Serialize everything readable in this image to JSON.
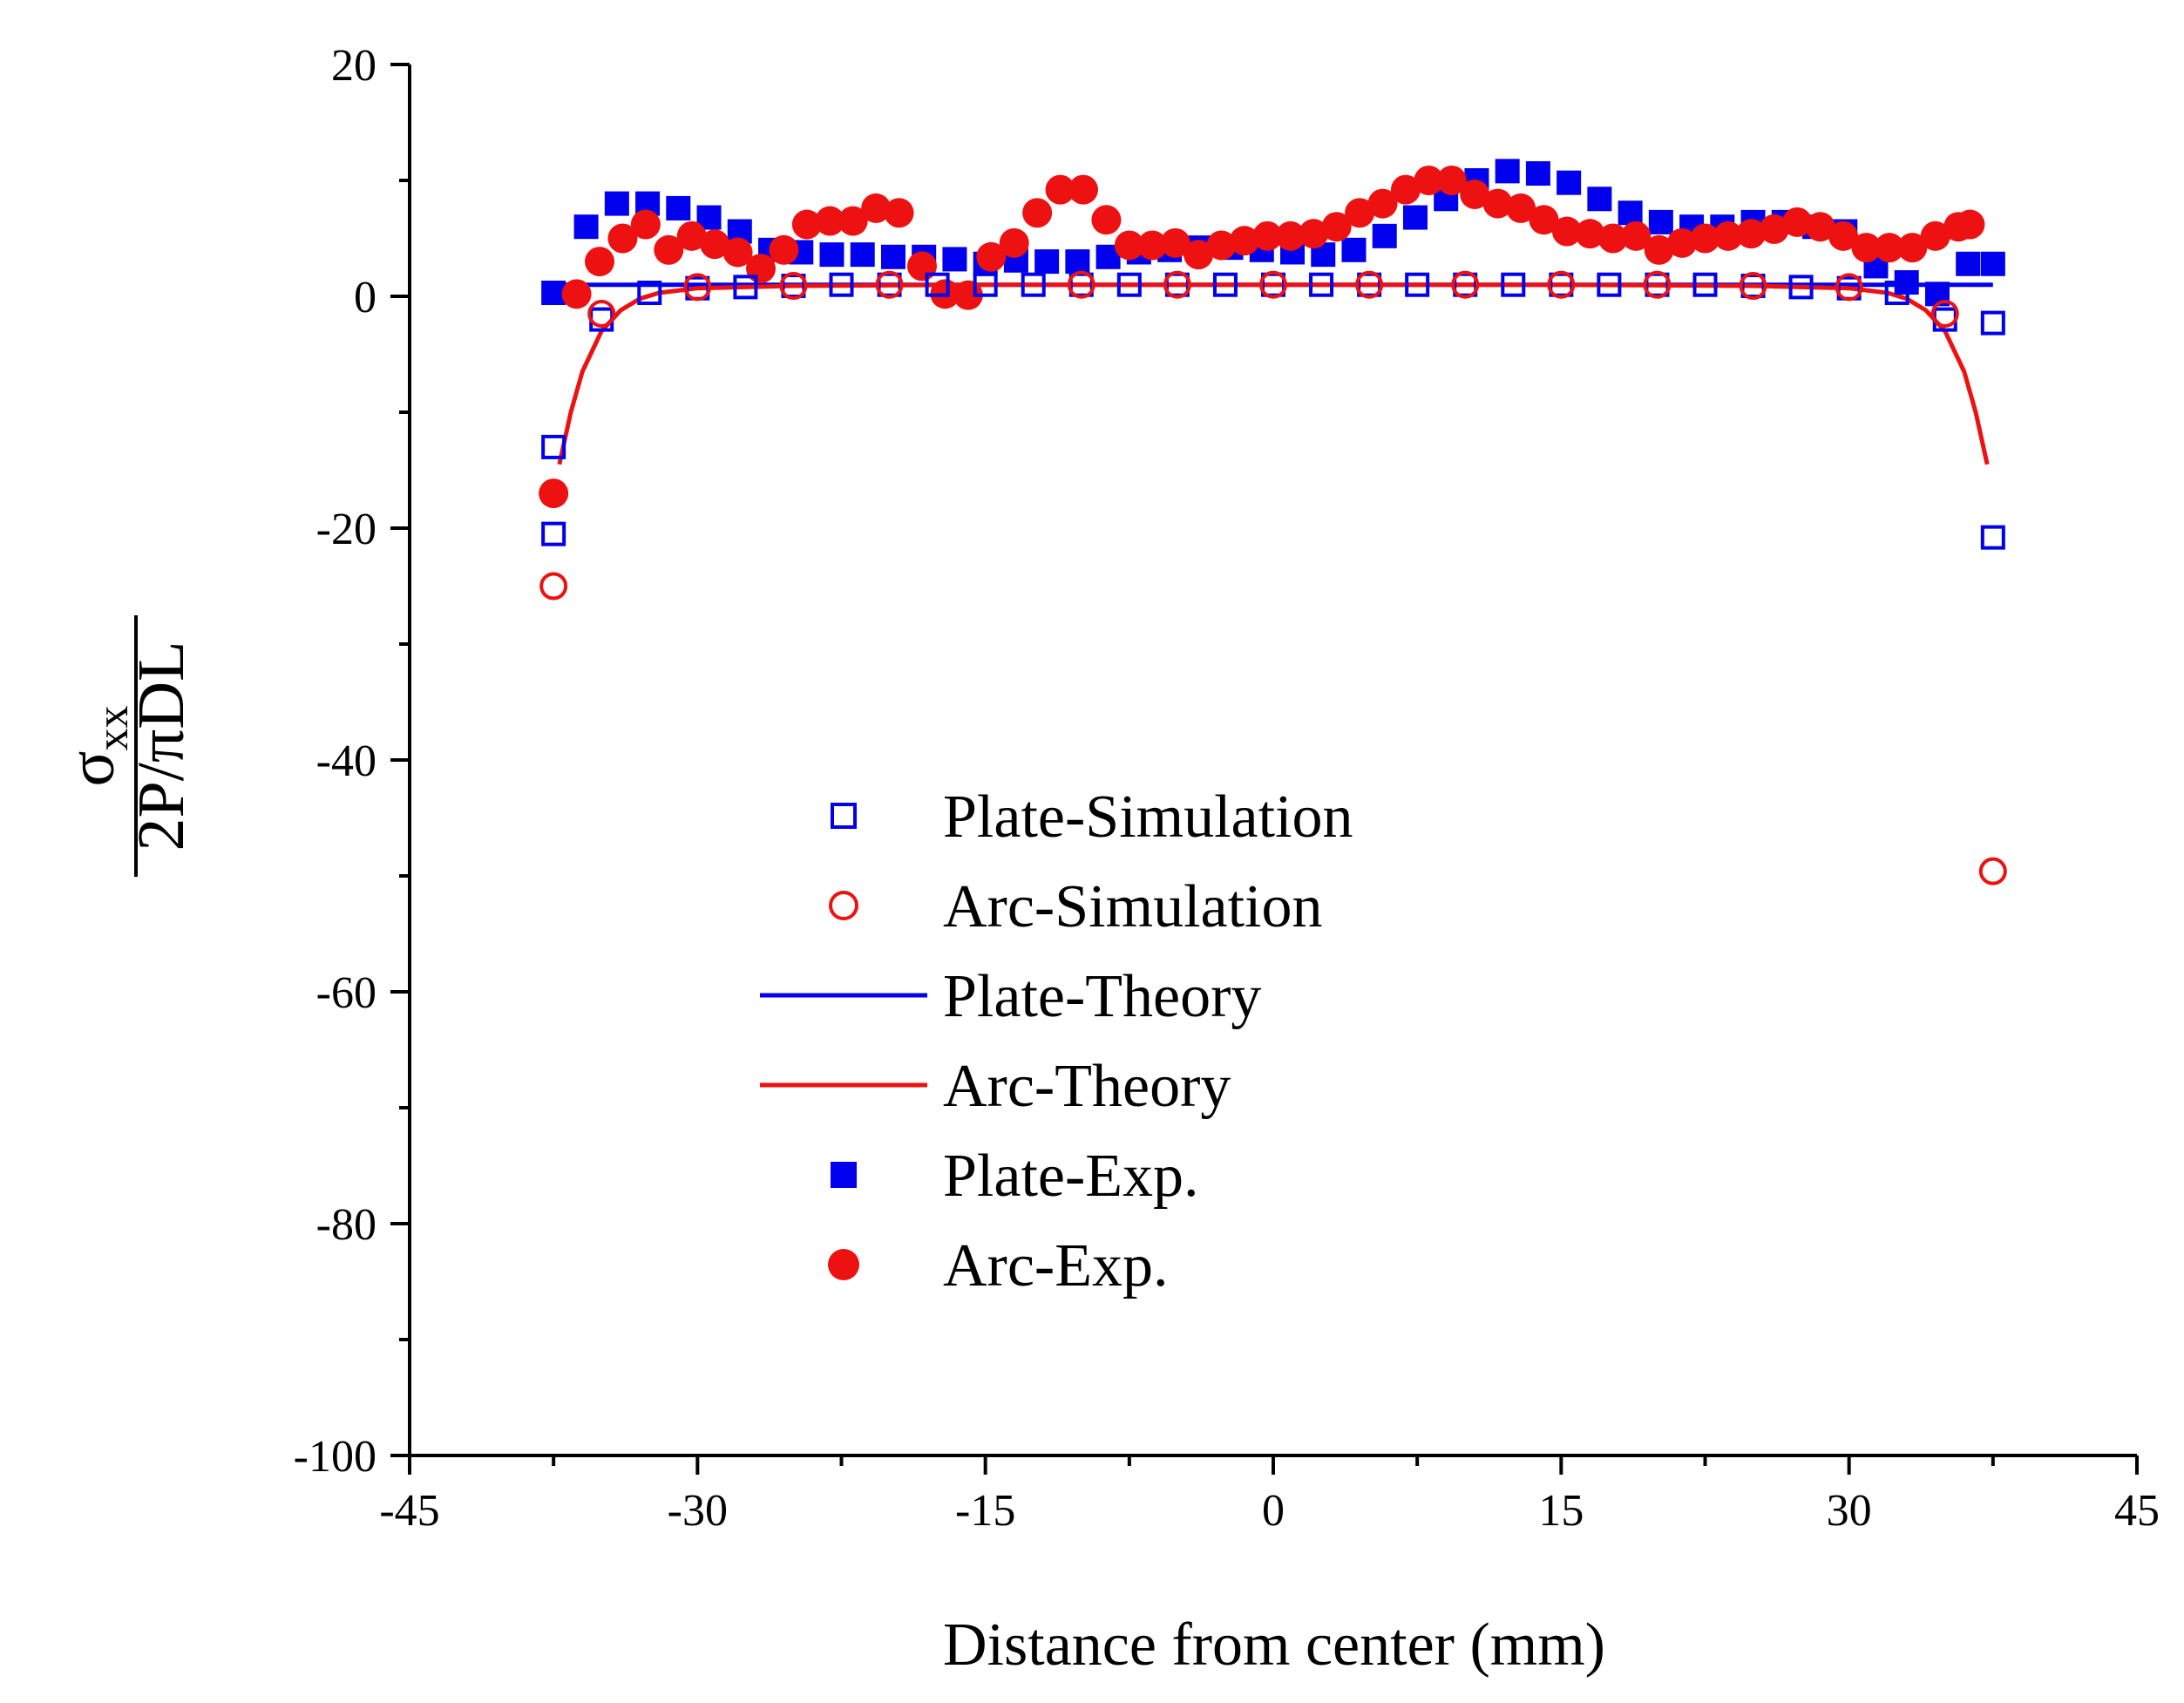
{
  "chart_data": {
    "type": "scatter",
    "title": "",
    "xlabel": "Distance from center (mm)",
    "ylabel": {
      "sigma": "σ",
      "subscript": "xx",
      "denominator": "2P/πDL"
    },
    "xlim": [
      -45,
      45
    ],
    "ylim": [
      -100,
      20
    ],
    "xticks": [
      -45,
      -30,
      -15,
      0,
      15,
      30,
      45
    ],
    "yticks": [
      -100,
      -80,
      -60,
      -40,
      -20,
      0,
      20
    ],
    "grid": false,
    "legend_position": "center",
    "colors": {
      "blue": "#0000ee",
      "red": "#ee1111"
    },
    "series": [
      {
        "name": "Plate-Simulation",
        "marker": "square-open",
        "color": "#0000ee",
        "x": [
          -37.5,
          -37.5,
          -35,
          -32.5,
          -30,
          -27.5,
          -25,
          -22.5,
          -20,
          -17.5,
          -15,
          -12.5,
          -10,
          -7.5,
          -5,
          -2.5,
          0,
          2.5,
          5,
          7.5,
          10,
          12.5,
          15,
          17.5,
          20,
          22.5,
          25,
          27.5,
          30,
          32.5,
          35,
          37.5,
          37.5
        ],
        "y": [
          -13,
          -20.5,
          -2,
          0.3,
          0.7,
          0.8,
          0.9,
          1.0,
          1.0,
          1.0,
          1.0,
          1.0,
          1.0,
          1.0,
          1.0,
          1.0,
          1.0,
          1.0,
          1.0,
          1.0,
          1.0,
          1.0,
          1.0,
          1.0,
          1.0,
          1.0,
          0.9,
          0.8,
          0.7,
          0.3,
          -2,
          -2.3,
          -20.8
        ]
      },
      {
        "name": "Arc-Simulation",
        "marker": "circle-open",
        "color": "#ee1111",
        "x": [
          -37.5,
          -35,
          -30,
          -25,
          -20,
          -10,
          -5,
          0,
          5,
          10,
          15,
          20,
          25,
          30,
          35,
          37.5
        ],
        "y": [
          -25,
          -1.5,
          0.8,
          0.9,
          1.0,
          1.0,
          1.0,
          1.0,
          1.0,
          1.0,
          1.0,
          1.0,
          0.9,
          0.8,
          -1.5,
          -49.6
        ]
      },
      {
        "name": "Plate-Theory",
        "marker": "line",
        "color": "#0000ee",
        "x": [
          -37.5,
          -30,
          -15,
          0,
          15,
          30,
          37.5
        ],
        "y": [
          1.0,
          1.0,
          1.0,
          1.0,
          1.0,
          1.0,
          1.0
        ]
      },
      {
        "name": "Arc-Theory",
        "marker": "line",
        "color": "#ee1111",
        "x": [
          -37.2,
          -36.6,
          -36,
          -35,
          -34,
          -33,
          -32,
          -30,
          -25,
          -15,
          0,
          15,
          25,
          30,
          32,
          33,
          34,
          35,
          36,
          36.6,
          37.2
        ],
        "y": [
          -14.5,
          -10,
          -6.5,
          -3,
          -1.2,
          -0.2,
          0.3,
          0.7,
          0.9,
          1.0,
          1.0,
          1.0,
          0.9,
          0.7,
          0.3,
          -0.2,
          -1.2,
          -3,
          -6.5,
          -10,
          -14.5
        ]
      },
      {
        "name": "Plate-Exp.",
        "marker": "square-filled",
        "color": "#0000ee",
        "x": [
          -37.5,
          -35.8,
          -34.2,
          -32.6,
          -31,
          -29.4,
          -27.8,
          -26.2,
          -24.6,
          -23,
          -21.4,
          -19.8,
          -18.2,
          -16.6,
          -15,
          -13.4,
          -11.8,
          -10.2,
          -8.6,
          -7,
          -5.4,
          -3.8,
          -2.2,
          -0.6,
          1,
          2.6,
          4.2,
          5.8,
          7.4,
          9,
          10.6,
          12.2,
          13.8,
          15.4,
          17,
          18.6,
          20.2,
          21.8,
          23.4,
          25,
          26.6,
          28.2,
          29.8,
          31.4,
          33,
          34.6,
          36.2,
          37.5
        ],
        "y": [
          0.3,
          6,
          8,
          8,
          7.6,
          6.8,
          5.6,
          4,
          3.8,
          3.6,
          3.6,
          3.4,
          3.4,
          3.2,
          2.8,
          3.1,
          3.0,
          3.0,
          3.4,
          3.8,
          4.0,
          4.2,
          4.2,
          4.0,
          3.8,
          3.6,
          4.0,
          5.2,
          6.8,
          8.4,
          10,
          10.8,
          10.6,
          9.8,
          8.4,
          7.2,
          6.4,
          6.0,
          6.0,
          6.4,
          6.4,
          6.0,
          5.6,
          2.6,
          1.2,
          0.2,
          2.8,
          2.8
        ]
      },
      {
        "name": "Arc-Exp.",
        "marker": "circle-filled",
        "color": "#ee1111",
        "x": [
          -37.5,
          -36.3,
          -35.1,
          -33.9,
          -32.7,
          -31.5,
          -30.3,
          -29.1,
          -27.9,
          -26.7,
          -25.5,
          -24.3,
          -23.1,
          -21.9,
          -20.7,
          -19.5,
          -18.3,
          -17.1,
          -15.9,
          -14.7,
          -13.5,
          -12.3,
          -11.1,
          -9.9,
          -8.7,
          -7.5,
          -6.3,
          -5.1,
          -3.9,
          -2.7,
          -1.5,
          -0.3,
          0.9,
          2.1,
          3.3,
          4.5,
          5.7,
          6.9,
          8.1,
          9.3,
          10.5,
          11.7,
          12.9,
          14.1,
          15.3,
          16.5,
          17.7,
          18.9,
          20.1,
          21.3,
          22.5,
          23.7,
          24.9,
          26.1,
          27.3,
          28.5,
          29.7,
          30.9,
          32.1,
          33.3,
          34.5,
          35.7,
          36.3
        ],
        "y": [
          -17,
          0.2,
          3,
          5,
          6.2,
          4,
          5.2,
          4.5,
          3.8,
          2.4,
          4.0,
          6.2,
          6.5,
          6.5,
          7.6,
          7.2,
          2.6,
          0.2,
          0.1,
          3.4,
          4.6,
          7.2,
          9.2,
          9.2,
          6.6,
          4.4,
          4.4,
          4.6,
          3.6,
          4.4,
          4.8,
          5.2,
          5.2,
          5.4,
          6.0,
          7.2,
          8.0,
          9.2,
          10.0,
          10.0,
          8.8,
          8.0,
          7.6,
          6.6,
          5.6,
          5.4,
          5.0,
          5.2,
          4.0,
          4.6,
          5.0,
          5.2,
          5.4,
          5.8,
          6.4,
          6.0,
          5.2,
          4.2,
          4.2,
          4.2,
          5.2,
          6.0,
          6.2
        ]
      }
    ]
  }
}
